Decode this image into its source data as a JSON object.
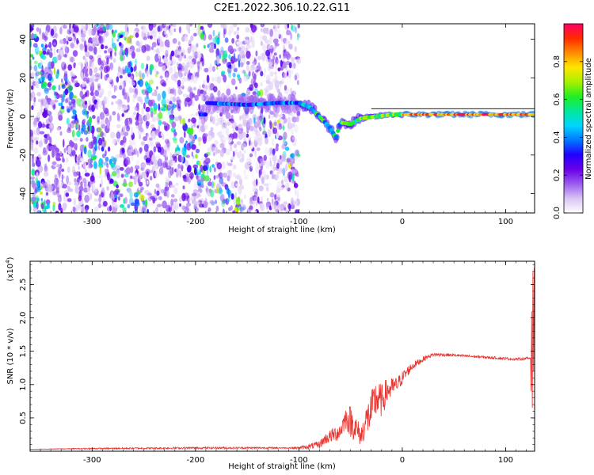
{
  "title": "C2E1.2022.306.10.22.G11",
  "colors": {
    "snr_line": "#e8332f",
    "colormap": [
      "#ffffff",
      "#d8c4f2",
      "#9b5cf0",
      "#6a00e6",
      "#2200ff",
      "#0077ff",
      "#00d5ff",
      "#00e89a",
      "#22ee22",
      "#a8f000",
      "#ffe600",
      "#ff8c00",
      "#ff2a00",
      "#ff0066"
    ]
  },
  "chart_data": [
    {
      "type": "heatmap",
      "xlabel": "Height of straight line (km)",
      "ylabel": "Frequency (Hz)",
      "xlim": [
        -360,
        128
      ],
      "ylim": [
        -50,
        48
      ],
      "xticks": [
        -300,
        -200,
        -100,
        0,
        100
      ],
      "yticks": [
        -40,
        -20,
        0,
        20,
        40
      ],
      "colorbar": {
        "label": "Normalized spectral amplitude",
        "range": [
          0,
          1
        ],
        "ticks": [
          "0.0",
          "0.2",
          "0.4",
          "0.6",
          "0.8"
        ]
      },
      "ridge": [
        {
          "x": -190,
          "y": 7
        },
        {
          "x": -150,
          "y": 6
        },
        {
          "x": -120,
          "y": 7
        },
        {
          "x": -100,
          "y": 7
        },
        {
          "x": -90,
          "y": 5
        },
        {
          "x": -80,
          "y": 0
        },
        {
          "x": -70,
          "y": -6
        },
        {
          "x": -64,
          "y": -11
        },
        {
          "x": -60,
          "y": -3
        },
        {
          "x": -50,
          "y": -4
        },
        {
          "x": -40,
          "y": -1
        },
        {
          "x": -25,
          "y": 0
        },
        {
          "x": -10,
          "y": 1
        },
        {
          "x": 10,
          "y": 1
        },
        {
          "x": 40,
          "y": 1
        },
        {
          "x": 80,
          "y": 1
        },
        {
          "x": 128,
          "y": 1
        }
      ]
    },
    {
      "type": "line",
      "xlabel": "Height of straight line (km)",
      "ylabel": "SNR (10 * v/v)",
      "yscale_label": "(x10",
      "yscale_exp": "4",
      "yscale_close": ")",
      "xlim": [
        -360,
        128
      ],
      "ylim": [
        0,
        2.85
      ],
      "xticks": [
        -300,
        -200,
        -100,
        0,
        100
      ],
      "yticks": [
        "0.5",
        "1.0",
        "1.5",
        "2.0",
        "2.5"
      ],
      "series": [
        {
          "x": [
            -360,
            -300,
            -200,
            -150,
            -110,
            -100,
            -90,
            -80,
            -75,
            -70,
            -60,
            -55,
            -50,
            -45,
            -40,
            -35,
            -30,
            -25,
            -20,
            -15,
            -10,
            -5,
            0,
            5,
            10,
            15,
            20,
            25,
            30,
            40,
            50,
            60,
            70,
            80,
            90,
            100,
            110,
            120,
            124,
            126,
            127,
            128
          ],
          "y": [
            0.03,
            0.04,
            0.05,
            0.05,
            0.05,
            0.05,
            0.07,
            0.1,
            0.18,
            0.22,
            0.3,
            0.5,
            0.45,
            0.35,
            0.22,
            0.45,
            0.6,
            0.8,
            0.75,
            0.9,
            0.95,
            1.0,
            1.1,
            1.2,
            1.28,
            1.33,
            1.38,
            1.42,
            1.45,
            1.45,
            1.44,
            1.43,
            1.42,
            1.41,
            1.4,
            1.39,
            1.38,
            1.39,
            1.4,
            0.7,
            2.7,
            2.7
          ],
          "noise": [
            0.0,
            0.01,
            0.015,
            0.015,
            0.01,
            0.02,
            0.04,
            0.06,
            0.08,
            0.1,
            0.14,
            0.16,
            0.25,
            0.2,
            0.15,
            0.25,
            0.3,
            0.3,
            0.25,
            0.2,
            0.15,
            0.12,
            0.1,
            0.08,
            0.06,
            0.05,
            0.04,
            0.03,
            0.03,
            0.025,
            0.02,
            0.02,
            0.02,
            0.02,
            0.02,
            0.02,
            0.02,
            0.02,
            0.03,
            0.3,
            0.1,
            0.1
          ]
        }
      ]
    }
  ]
}
